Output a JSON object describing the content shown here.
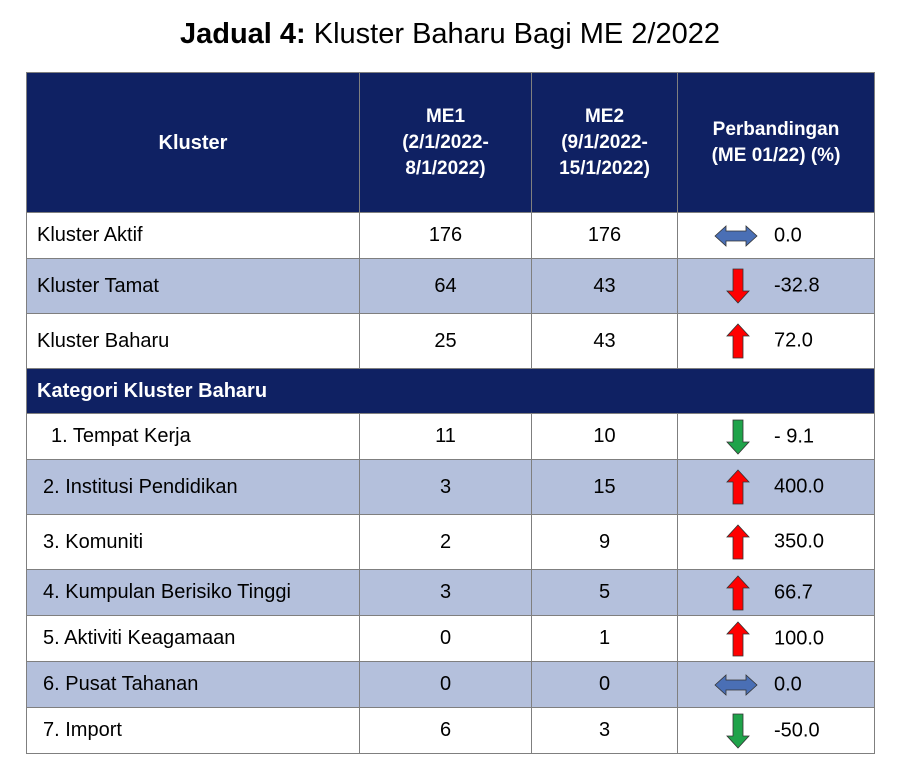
{
  "title": {
    "prefix": "Jadual 4:",
    "text": "Kluster Baharu Bagi ME 2/2022"
  },
  "colors": {
    "header_bg": "#0f2163",
    "alt_row": "#b4c0dc",
    "up": "#ff0000",
    "down": "#1fa34a",
    "same": "#4a6fb5"
  },
  "headers": {
    "kluster": "Kluster",
    "me1": [
      "ME1",
      "(2/1/2022-",
      "8/1/2022)"
    ],
    "me2": [
      "ME2",
      "(9/1/2022-",
      "15/1/2022)"
    ],
    "cmp": [
      "Perbandingan",
      "(ME 01/22) (%)"
    ]
  },
  "rows_top": [
    {
      "name": "Kluster Aktif",
      "me1": "176",
      "me2": "176",
      "cmp": "0.0",
      "trend": "same"
    },
    {
      "name": "Kluster Tamat",
      "me1": "64",
      "me2": "43",
      "cmp": "-32.8",
      "trend": "down-red"
    },
    {
      "name": "Kluster Baharu",
      "me1": "25",
      "me2": "43",
      "cmp": "72.0",
      "trend": "up"
    }
  ],
  "section": "Kategori Kluster Baharu",
  "rows_cat": [
    {
      "name": "1. Tempat Kerja",
      "me1": "11",
      "me2": "10",
      "cmp": "- 9.1",
      "trend": "down"
    },
    {
      "name": "2. Institusi Pendidikan",
      "me1": "3",
      "me2": "15",
      "cmp": "400.0",
      "trend": "up"
    },
    {
      "name": "3.  Komuniti",
      "me1": "2",
      "me2": "9",
      "cmp": "350.0",
      "trend": "up"
    },
    {
      "name": "4. Kumpulan Berisiko Tinggi",
      "me1": "3",
      "me2": "5",
      "cmp": "66.7",
      "trend": "up"
    },
    {
      "name": "5. Aktiviti Keagamaan",
      "me1": "0",
      "me2": "1",
      "cmp": "100.0",
      "trend": "up"
    },
    {
      "name": "6. Pusat Tahanan",
      "me1": "0",
      "me2": "0",
      "cmp": "0.0",
      "trend": "same"
    },
    {
      "name": "7. Import",
      "me1": "6",
      "me2": "3",
      "cmp": "-50.0",
      "trend": "down"
    }
  ]
}
